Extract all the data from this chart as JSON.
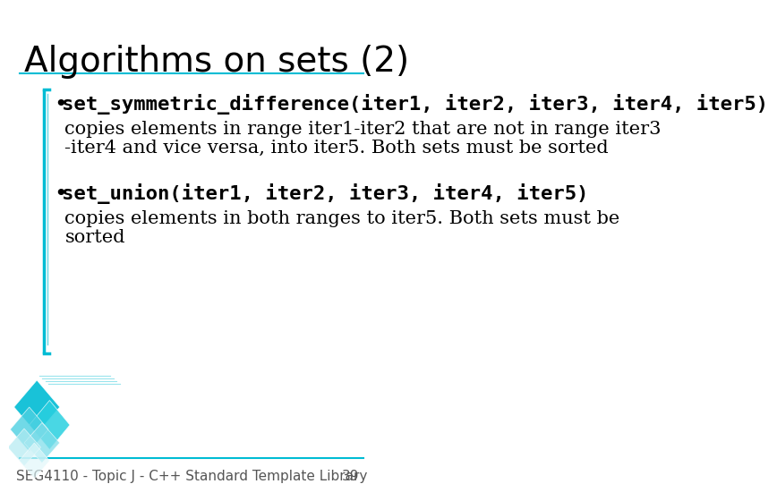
{
  "title": "Algorithms on sets (2)",
  "title_fontsize": 28,
  "title_color": "#000000",
  "title_font": "DejaVu Sans",
  "background_color": "#ffffff",
  "bullet1_bold": "set_symmetric_difference(iter1, iter2, iter3, iter4, iter5)",
  "bullet1_text_line1": "copies elements in range iter1-iter2 that are not in range iter3",
  "bullet1_text_line2": "-iter4 and vice versa, into iter5. Both sets must be sorted",
  "bullet2_bold": "set_union(iter1, iter2, iter3, iter4, iter5)",
  "bullet2_text_line1": "copies elements in both ranges to iter5. Both sets must be",
  "bullet2_text_line2": "sorted",
  "footer_text": "SEG4110 - Topic J - C++ Standard Template Library",
  "footer_page": "39",
  "footer_fontsize": 11,
  "bullet_fontsize": 16,
  "body_fontsize": 15,
  "accent_color": "#00bcd4",
  "line_color": "#00bcd4",
  "diamond_colors": [
    "#00bcd4",
    "#4dd0e1",
    "#b2ebf2",
    "#80deea"
  ],
  "title_underline_color": "#00bcd4"
}
